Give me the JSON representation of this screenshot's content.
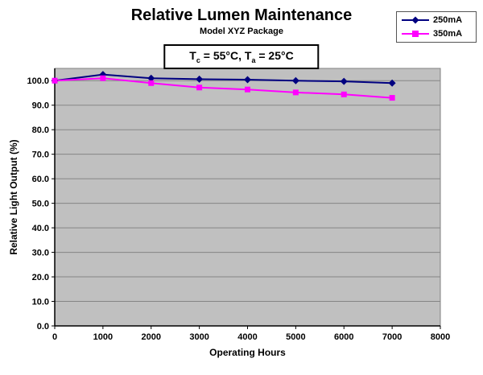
{
  "chart_data": {
    "type": "line",
    "title": "Relative Lumen Maintenance",
    "subtitle": "Model XYZ Package",
    "annotation": "Tc = 55°C, Ta = 25°C",
    "annotation_parts": {
      "t1": "T",
      "s1": "c",
      "t2": " = 55°C, T",
      "s2": "a",
      "t3": " = 25°C"
    },
    "xlabel": "Operating Hours",
    "ylabel": "Relative Light Output (%)",
    "x": [
      0,
      1000,
      2000,
      3000,
      4000,
      5000,
      6000,
      7000
    ],
    "series": [
      {
        "name": "250mA",
        "color": "#000080",
        "marker": "diamond",
        "values": [
          100,
          102.5,
          101,
          100.6,
          100.4,
          100,
          99.7,
          99
        ]
      },
      {
        "name": "350mA",
        "color": "#ff00ff",
        "marker": "square",
        "values": [
          100,
          101,
          99,
          97.2,
          96.4,
          95.2,
          94.4,
          93
        ]
      }
    ],
    "xlim": [
      0,
      8000
    ],
    "ylim": [
      0,
      105
    ],
    "xticks": [
      0,
      1000,
      2000,
      3000,
      4000,
      5000,
      6000,
      7000,
      8000
    ],
    "xtick_labels": [
      "0",
      "1000",
      "2000",
      "3000",
      "4000",
      "5000",
      "6000",
      "7000",
      "8000"
    ],
    "yticks": [
      0,
      10,
      20,
      30,
      40,
      50,
      60,
      70,
      80,
      90,
      100
    ],
    "ytick_labels": [
      "0.0",
      "10.0",
      "20.0",
      "30.0",
      "40.0",
      "50.0",
      "60.0",
      "70.0",
      "80.0",
      "90.0",
      "100.0"
    ],
    "grid": true,
    "legend_position": "top-right",
    "plot_bg": "#c0c0c0",
    "grid_color": "#858585",
    "plot_border_color": "#808080",
    "axis_color": "#000000",
    "text_color": "#000000"
  }
}
